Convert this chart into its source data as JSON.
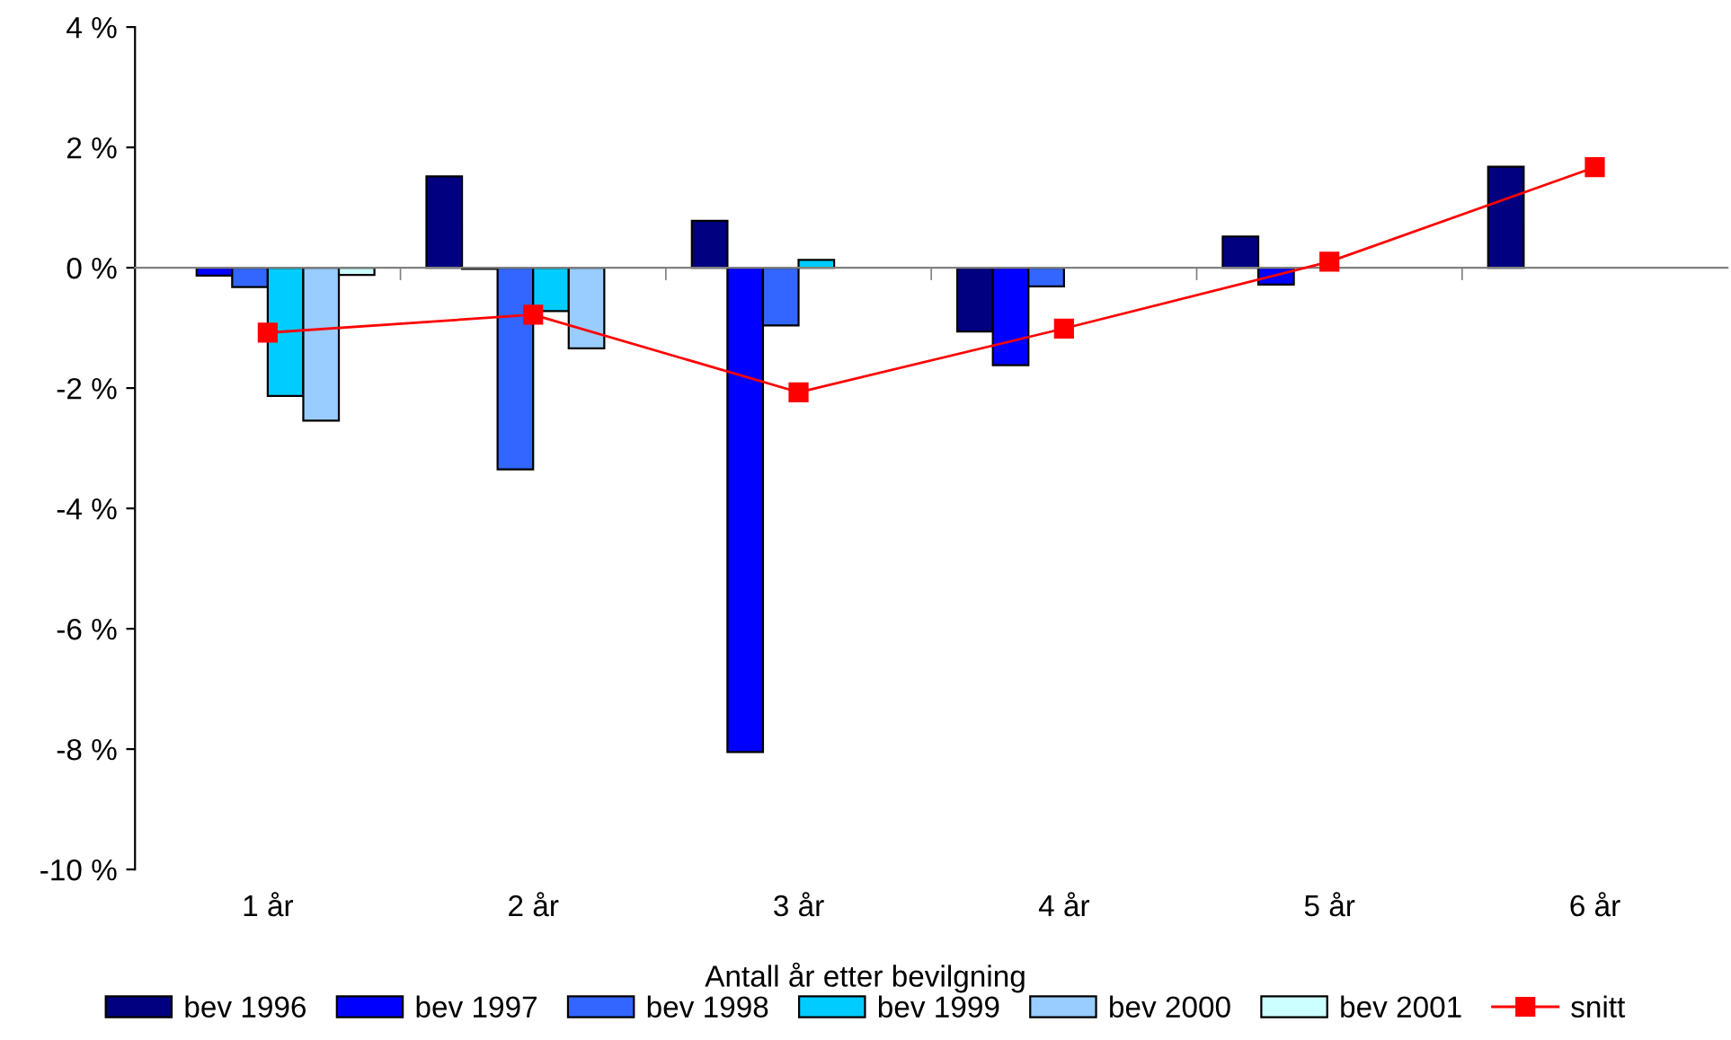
{
  "chart_data": {
    "type": "bar",
    "xlabel": "Antall år etter bevilgning",
    "categories": [
      "1 år",
      "2 år",
      "3 år",
      "4 år",
      "5 år",
      "6 år"
    ],
    "ylim": [
      -10,
      4
    ],
    "yticks": [
      {
        "value": -10,
        "label": "-10 %"
      },
      {
        "value": -8,
        "label": "-8 %"
      },
      {
        "value": -6,
        "label": "-6 %"
      },
      {
        "value": -4,
        "label": "-4 %"
      },
      {
        "value": -2,
        "label": "-2 %"
      },
      {
        "value": 0,
        "label": "0 %"
      },
      {
        "value": 2,
        "label": "2 %"
      },
      {
        "value": 4,
        "label": "4 %"
      }
    ],
    "legend": "bottom",
    "series": [
      {
        "name": "bev 1996",
        "color": "#000080",
        "values": [
          null,
          1.52,
          0.78,
          -1.06,
          0.52,
          1.68
        ]
      },
      {
        "name": "bev 1997",
        "color": "#0000ff",
        "values": [
          -0.13,
          -0.02,
          -8.05,
          -1.62,
          -0.28,
          null
        ]
      },
      {
        "name": "bev 1998",
        "color": "#3366ff",
        "values": [
          -0.32,
          -3.35,
          -0.96,
          -0.31,
          null,
          null
        ]
      },
      {
        "name": "bev 1999",
        "color": "#00ccff",
        "values": [
          -2.13,
          -0.72,
          0.13,
          null,
          null,
          null
        ]
      },
      {
        "name": "bev 2000",
        "color": "#99ccff",
        "values": [
          -2.54,
          -1.34,
          null,
          null,
          null,
          null
        ]
      },
      {
        "name": "bev 2001",
        "color": "#ccffff",
        "values": [
          -0.12,
          null,
          null,
          null,
          null,
          null
        ]
      },
      {
        "name": "snitt",
        "type": "line",
        "color": "#ff0000",
        "marker": "square",
        "line_style": "solid",
        "values": [
          -1.08,
          -0.78,
          -2.07,
          -1.01,
          0.1,
          1.67
        ]
      }
    ]
  }
}
